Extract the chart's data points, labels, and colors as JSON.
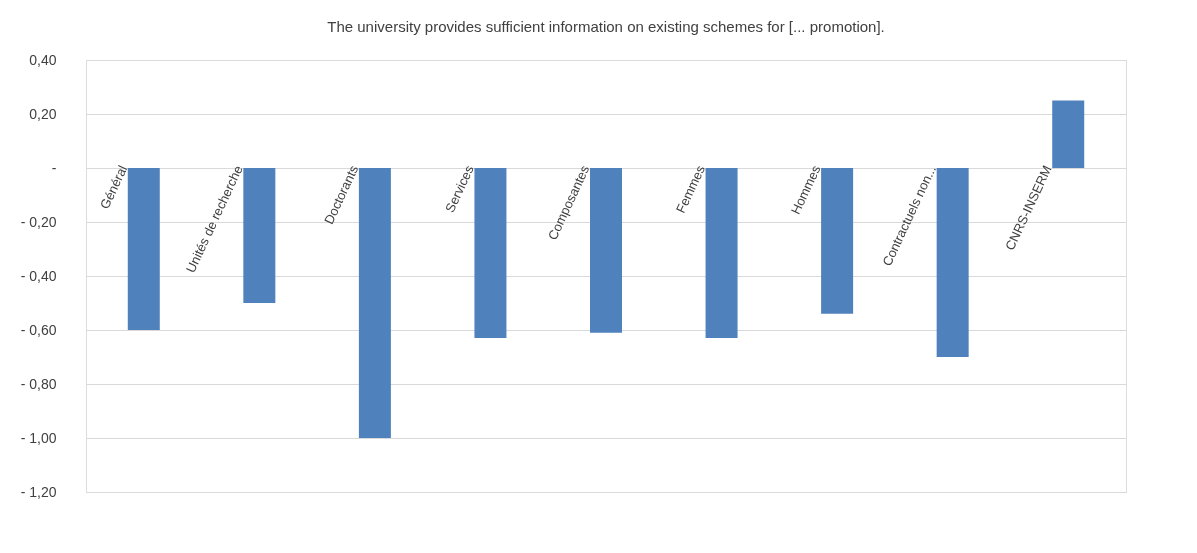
{
  "chart_data": {
    "type": "bar",
    "title": "The university provides sufficient information on existing schemes for [... promotion].",
    "categories": [
      "Général",
      "Unités de recherche",
      "Doctorants",
      "Services",
      "Composantes",
      "Femmes",
      "Hommes",
      "Contractuels non...",
      "CNRS-INSERM"
    ],
    "values": [
      -0.6,
      -0.5,
      -1.0,
      -0.63,
      -0.61,
      -0.63,
      -0.54,
      -0.7,
      0.25
    ],
    "color": "#4f81bd",
    "ylim": [
      -1.2,
      0.4
    ],
    "yticks": [
      {
        "value": 0.4,
        "label": "0,40"
      },
      {
        "value": 0.2,
        "label": "0,20"
      },
      {
        "value": 0,
        "label": "-"
      },
      {
        "value": -0.2,
        "label": "- 0,20"
      },
      {
        "value": -0.4,
        "label": "- 0,40"
      },
      {
        "value": -0.6,
        "label": "- 0,60"
      },
      {
        "value": -0.8,
        "label": "- 0,80"
      },
      {
        "value": -1.0,
        "label": "- 1,00"
      },
      {
        "value": -1.2,
        "label": "- 1,20"
      }
    ],
    "grid": "y"
  }
}
